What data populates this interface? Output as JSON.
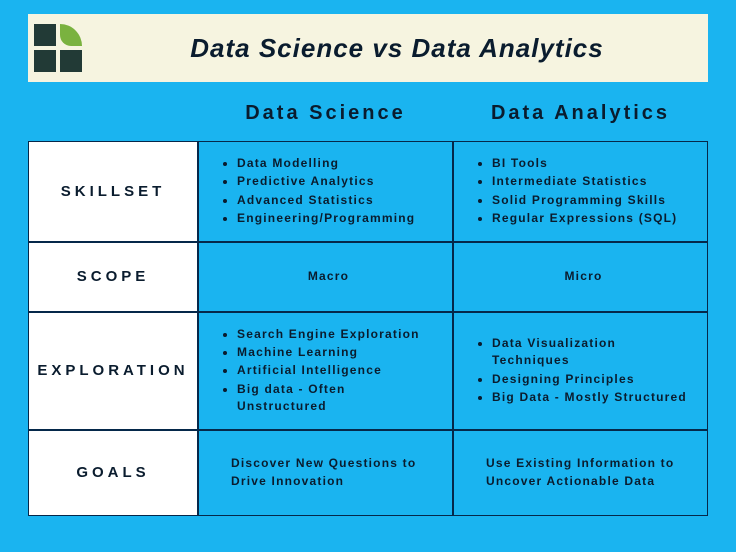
{
  "colors": {
    "background": "#1ab4f0",
    "header_bg": "#f6f4e0",
    "row_label_bg": "#ffffff",
    "border": "#05284a",
    "text_dark": "#0a1c2e",
    "logo_dark": "#223a36",
    "logo_leaf": "#7ab23f"
  },
  "title": "Data Science vs Data Analytics",
  "columns": {
    "left": "Data Science",
    "right": "Data Analytics"
  },
  "rows": {
    "skillset": {
      "label": "SKILLSET",
      "ds": [
        "Data Modelling",
        "Predictive Analytics",
        "Advanced Statistics",
        "Engineering/Programming"
      ],
      "da": [
        "BI Tools",
        "Intermediate Statistics",
        "Solid Programming Skills",
        "Regular Expressions (SQL)"
      ]
    },
    "scope": {
      "label": "SCOPE",
      "ds": "Macro",
      "da": "Micro"
    },
    "exploration": {
      "label": "EXPLORATION",
      "ds": [
        "Search Engine Exploration",
        "Machine Learning",
        "Artificial Intelligence",
        "Big data - Often Unstructured"
      ],
      "da": [
        "Data Visualization Techniques",
        "Designing Principles",
        "Big Data - Mostly Structured"
      ]
    },
    "goals": {
      "label": "GOALS",
      "ds": "Discover New Questions to Drive Innovation",
      "da": "Use Existing Information to Uncover Actionable Data"
    }
  }
}
